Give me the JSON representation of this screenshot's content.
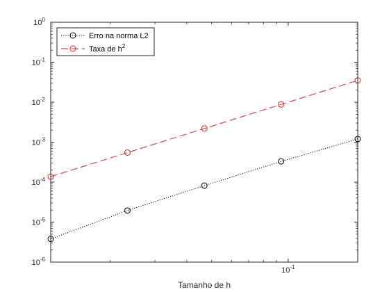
{
  "chart_data": {
    "type": "line",
    "scale": {
      "x": "log",
      "y": "log"
    },
    "xlabel": "Tamanho de h",
    "ylabel": "",
    "title": "",
    "xlim": [
      0.0117,
      0.1875
    ],
    "ylim": [
      1e-06,
      1
    ],
    "grid": false,
    "legend_position": "top-left",
    "x_ticks": [
      {
        "value": 0.1,
        "base": "10",
        "exp": "-1"
      }
    ],
    "y_ticks": [
      {
        "value": 1e-06,
        "base": "10",
        "exp": "-6"
      },
      {
        "value": 1e-05,
        "base": "10",
        "exp": "-5"
      },
      {
        "value": 0.0001,
        "base": "10",
        "exp": "-4"
      },
      {
        "value": 0.001,
        "base": "10",
        "exp": "-3"
      },
      {
        "value": 0.01,
        "base": "10",
        "exp": "-2"
      },
      {
        "value": 0.1,
        "base": "10",
        "exp": "-1"
      },
      {
        "value": 1,
        "base": "10",
        "exp": "0"
      }
    ],
    "x": [
      0.0117,
      0.0234,
      0.0469,
      0.0938,
      0.1875
    ],
    "series": [
      {
        "name": "Erro na norma L2",
        "legend": {
          "text": "Erro na norma L2",
          "sup": ""
        },
        "color": "#000000",
        "dash": "dotted",
        "marker": "circle",
        "values": [
          3.8e-06,
          1.95e-05,
          8.2e-05,
          0.00033,
          0.0012
        ]
      },
      {
        "name": "Taxa de h^2",
        "legend": {
          "text": "Taxa de h",
          "sup": "2"
        },
        "color": "#d62728",
        "dash": "dashed",
        "marker": "circle",
        "values": [
          0.000137,
          0.000549,
          0.0022,
          0.0088,
          0.0352
        ]
      }
    ]
  }
}
